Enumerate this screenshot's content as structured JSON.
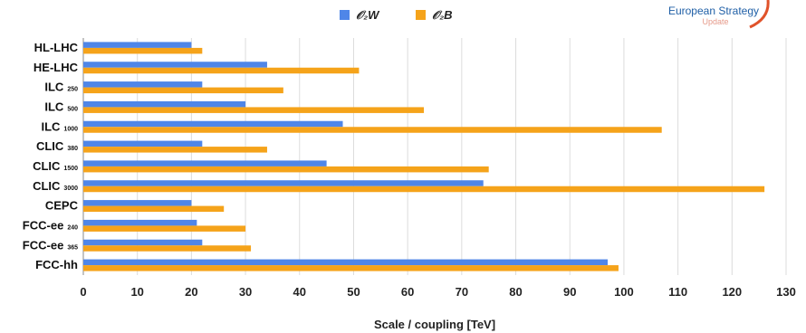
{
  "chart_data": {
    "type": "bar",
    "orientation": "horizontal",
    "categories": [
      {
        "name": "HL-LHC",
        "sub": ""
      },
      {
        "name": "HE-LHC",
        "sub": ""
      },
      {
        "name": "ILC",
        "sub": "250"
      },
      {
        "name": "ILC",
        "sub": "500"
      },
      {
        "name": "ILC",
        "sub": "1000"
      },
      {
        "name": "CLIC",
        "sub": "380"
      },
      {
        "name": "CLIC",
        "sub": "1500"
      },
      {
        "name": "CLIC",
        "sub": "3000"
      },
      {
        "name": "CEPC",
        "sub": ""
      },
      {
        "name": "FCC-ee",
        "sub": "240"
      },
      {
        "name": "FCC-ee",
        "sub": "365"
      },
      {
        "name": "FCC-hh",
        "sub": ""
      }
    ],
    "series": [
      {
        "name": "𝒪₂W",
        "color": "#4f86e8",
        "values": [
          20,
          34,
          22,
          30,
          48,
          22,
          45,
          74,
          20,
          21,
          22,
          97
        ]
      },
      {
        "name": "𝒪₂B",
        "color": "#f5a31a",
        "values": [
          22,
          51,
          37,
          63,
          107,
          34,
          75,
          126,
          26,
          30,
          31,
          99
        ]
      }
    ],
    "xlabel": "Scale / coupling [TeV]",
    "xlim": [
      0,
      130
    ],
    "xticks": [
      0,
      10,
      20,
      30,
      40,
      50,
      60,
      70,
      80,
      90,
      100,
      110,
      120,
      130
    ],
    "grid": true,
    "legend_position": "top-center"
  },
  "logo": {
    "line1": "European Strategy",
    "line2": "Update",
    "colors": {
      "primary": "#1f5fa6",
      "secondary": "#e69a8a",
      "accent": "#e0522a"
    }
  }
}
